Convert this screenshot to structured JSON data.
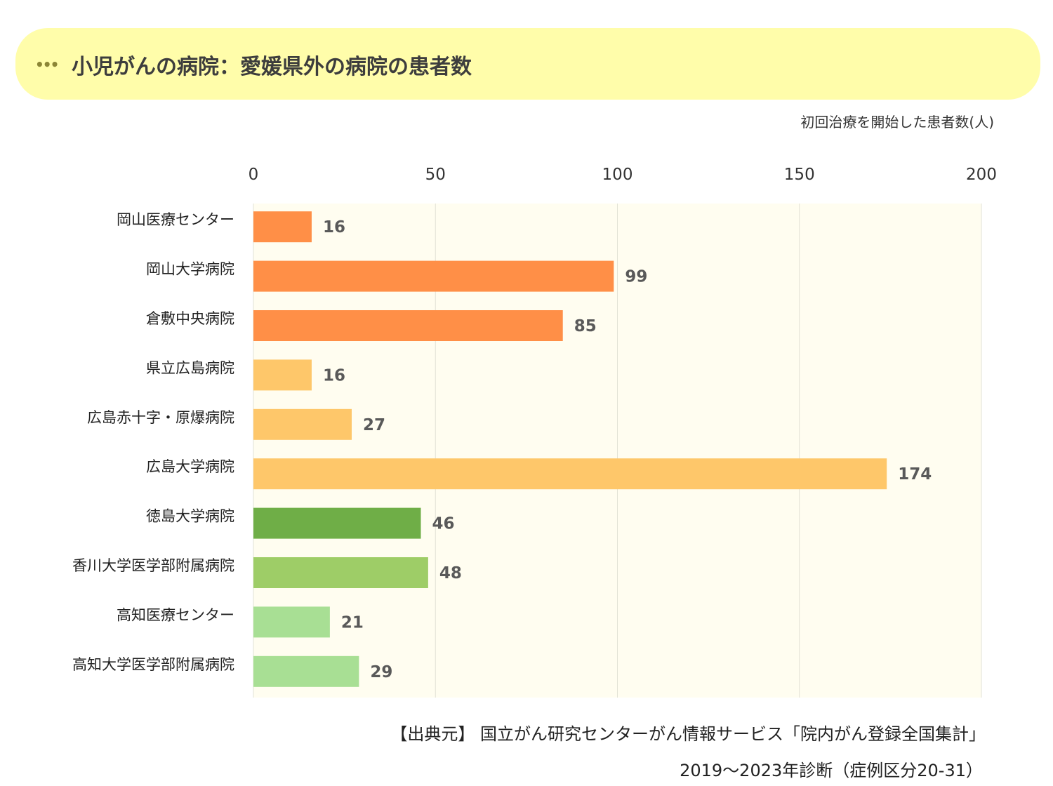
{
  "header": {
    "dots": "•••",
    "title": "小児がんの病院：愛媛県外の病院の患者数"
  },
  "unit_label": "初回治療を開始した患者数(人)",
  "footer": {
    "source": "【出典元】 国立がん研究センターがん情報サービス「院内がん登録全国集計」",
    "period": "2019～2023年診断（症例区分20-31）"
  },
  "chart_data": {
    "type": "bar",
    "orientation": "horizontal",
    "title": "小児がんの病院：愛媛県外の病院の患者数",
    "xlabel": "初回治療を開始した患者数(人)",
    "ylabel": "",
    "xlim": [
      0,
      200
    ],
    "xticks": [
      0,
      50,
      100,
      150,
      200
    ],
    "grid": true,
    "legend": "none",
    "categories": [
      "岡山医療センター",
      "岡山大学病院",
      "倉敷中央病院",
      "県立広島病院",
      "広島赤十字・原爆病院",
      "広島大学病院",
      "徳島大学病院",
      "香川大学医学部附属病院",
      "高知医療センター",
      "高知大学医学部附属病院"
    ],
    "values": [
      16,
      99,
      85,
      16,
      27,
      174,
      46,
      48,
      21,
      29
    ],
    "colors": [
      "#ff8f47",
      "#ff8f47",
      "#ff8f47",
      "#fec76a",
      "#fec76a",
      "#fec76a",
      "#6fae47",
      "#9ecd67",
      "#a8df94",
      "#a8df94"
    ],
    "plot_background": "#fffdf0",
    "grid_color": "#e2e2d6",
    "label_color": "#595959"
  }
}
